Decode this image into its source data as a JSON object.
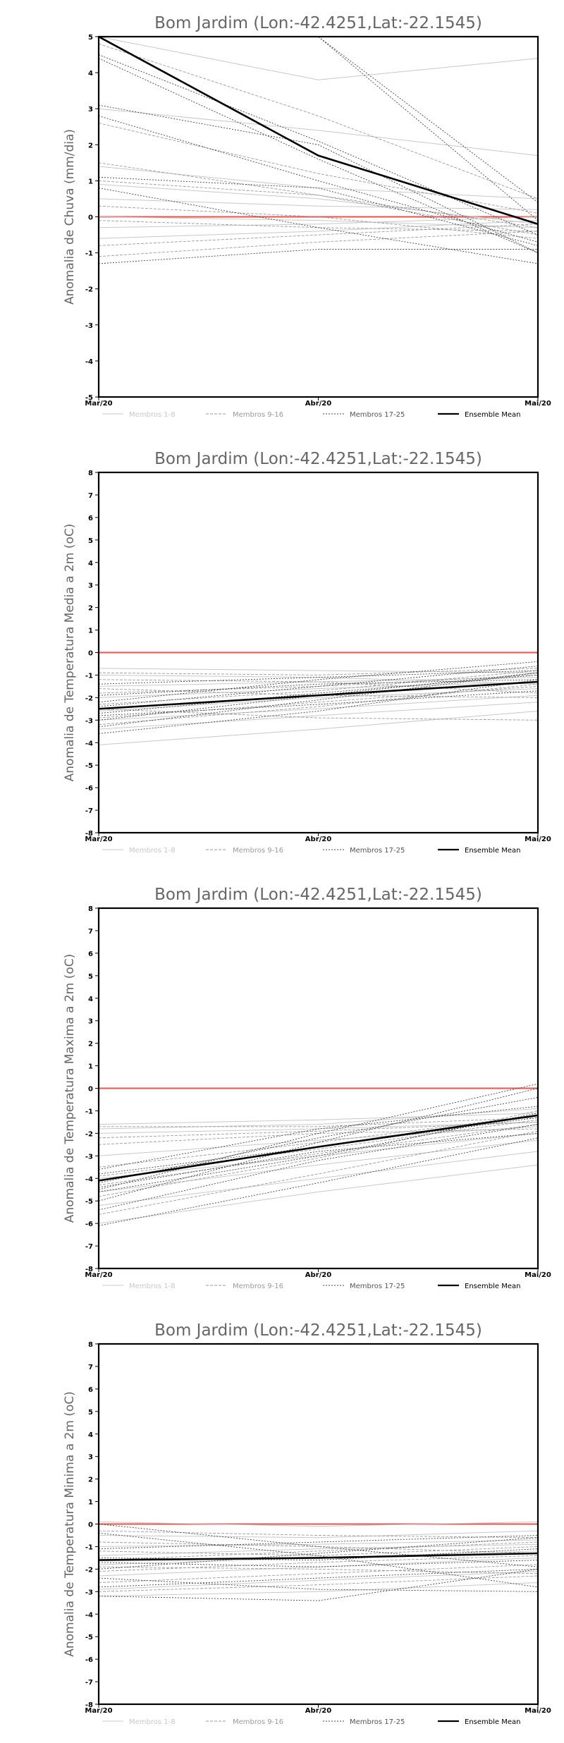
{
  "chart_data": [
    {
      "type": "line",
      "title": "Bom Jardim (Lon:-42.4251,Lat:-22.1545)",
      "ylabel": "Anomalia de Chuva (mm/dia)",
      "categories": [
        "Mar/20",
        "Abr/20",
        "Mai/20"
      ],
      "ylim": [
        -5,
        5
      ],
      "yticks": [
        -5,
        -4,
        -3,
        -2,
        -1,
        0,
        1,
        2,
        3,
        4,
        5
      ],
      "zero_line_color": "#e06666",
      "legend": [
        "Membros 1-8",
        "Membros 9-16",
        "Membros 17-25",
        "Ensemble Mean"
      ],
      "legend_placement": "bottom",
      "series": [
        {
          "group": 0,
          "values": [
            5.0,
            3.8,
            4.4
          ]
        },
        {
          "group": 0,
          "values": [
            3.0,
            2.4,
            1.7
          ]
        },
        {
          "group": 0,
          "values": [
            1.4,
            0.8,
            0.5
          ]
        },
        {
          "group": 0,
          "values": [
            0.5,
            0.3,
            0.2
          ]
        },
        {
          "group": 0,
          "values": [
            -0.3,
            -0.2,
            0.0
          ]
        },
        {
          "group": 0,
          "values": [
            -0.6,
            -0.4,
            -0.1
          ]
        },
        {
          "group": 0,
          "values": [
            0.0,
            -0.1,
            -0.3
          ]
        },
        {
          "group": 0,
          "values": [
            0.9,
            0.5,
            -0.2
          ]
        },
        {
          "group": 1,
          "values": [
            4.8,
            2.8,
            0.5
          ]
        },
        {
          "group": 1,
          "values": [
            2.6,
            1.2,
            0.1
          ]
        },
        {
          "group": 1,
          "values": [
            1.0,
            0.6,
            -0.5
          ]
        },
        {
          "group": 1,
          "values": [
            0.3,
            0.0,
            -0.6
          ]
        },
        {
          "group": 1,
          "values": [
            -1.1,
            -0.7,
            -0.4
          ]
        },
        {
          "group": 1,
          "values": [
            -0.8,
            -0.5,
            -0.2
          ]
        },
        {
          "group": 1,
          "values": [
            -0.1,
            -0.3,
            -0.4
          ]
        },
        {
          "group": 1,
          "values": [
            1.5,
            0.6,
            -0.3
          ]
        },
        {
          "group": 2,
          "values": [
            5.0,
            5.0,
            0.4
          ]
        },
        {
          "group": 2,
          "values": [
            5.0,
            5.0,
            -0.1
          ]
        },
        {
          "group": 2,
          "values": [
            4.5,
            2.1,
            -0.5
          ]
        },
        {
          "group": 2,
          "values": [
            2.8,
            1.0,
            -0.7
          ]
        },
        {
          "group": 2,
          "values": [
            3.1,
            2.0,
            -1.0
          ]
        },
        {
          "group": 2,
          "values": [
            1.1,
            0.8,
            -0.8
          ]
        },
        {
          "group": 2,
          "values": [
            0.8,
            -0.3,
            -1.3
          ]
        },
        {
          "group": 2,
          "values": [
            -1.3,
            -0.9,
            -0.9
          ]
        },
        {
          "group": 2,
          "values": [
            4.4,
            1.6,
            -1.0
          ]
        },
        {
          "group": 3,
          "values": [
            5.0,
            1.7,
            -0.2
          ]
        }
      ]
    },
    {
      "type": "line",
      "title": "Bom Jardim (Lon:-42.4251,Lat:-22.1545)",
      "ylabel": "Anomalia de Temperatura Media a 2m (oC)",
      "categories": [
        "Mar/20",
        "Abr/20",
        "Mai/20"
      ],
      "ylim": [
        -8,
        8
      ],
      "yticks": [
        -8,
        -7,
        -6,
        -5,
        -4,
        -3,
        -2,
        -1,
        0,
        1,
        2,
        3,
        4,
        5,
        6,
        7,
        8
      ],
      "zero_line_color": "#e06666",
      "legend": [
        "Membros 1-8",
        "Membros 9-16",
        "Membros 17-25",
        "Ensemble Mean"
      ],
      "legend_placement": "bottom",
      "series": [
        {
          "group": 0,
          "values": [
            -0.7,
            -0.8,
            -0.9
          ]
        },
        {
          "group": 0,
          "values": [
            -1.0,
            -1.1,
            -1.4
          ]
        },
        {
          "group": 0,
          "values": [
            -1.5,
            -1.3,
            -1.1
          ]
        },
        {
          "group": 0,
          "values": [
            -2.0,
            -1.6,
            -1.3
          ]
        },
        {
          "group": 0,
          "values": [
            -2.6,
            -2.0,
            -1.6
          ]
        },
        {
          "group": 0,
          "values": [
            -3.0,
            -2.5,
            -1.9
          ]
        },
        {
          "group": 0,
          "values": [
            -3.4,
            -2.8,
            -2.2
          ]
        },
        {
          "group": 0,
          "values": [
            -4.1,
            -3.4,
            -2.6
          ]
        },
        {
          "group": 1,
          "values": [
            -1.2,
            -1.3,
            -1.8
          ]
        },
        {
          "group": 1,
          "values": [
            -1.8,
            -1.5,
            -1.0
          ]
        },
        {
          "group": 1,
          "values": [
            -2.3,
            -1.7,
            -0.8
          ]
        },
        {
          "group": 1,
          "values": [
            -2.9,
            -2.2,
            -1.5
          ]
        },
        {
          "group": 1,
          "values": [
            -3.2,
            -2.4,
            -1.4
          ]
        },
        {
          "group": 1,
          "values": [
            -2.5,
            -2.9,
            -3.0
          ]
        },
        {
          "group": 1,
          "values": [
            -0.9,
            -1.0,
            -0.7
          ]
        },
        {
          "group": 1,
          "values": [
            -1.6,
            -1.9,
            -2.0
          ]
        },
        {
          "group": 2,
          "values": [
            -2.4,
            -1.5,
            -0.6
          ]
        },
        {
          "group": 2,
          "values": [
            -3.0,
            -1.9,
            -0.9
          ]
        },
        {
          "group": 2,
          "values": [
            -3.6,
            -2.6,
            -1.2
          ]
        },
        {
          "group": 2,
          "values": [
            -2.2,
            -1.2,
            -0.4
          ]
        },
        {
          "group": 2,
          "values": [
            -1.9,
            -1.4,
            -1.2
          ]
        },
        {
          "group": 2,
          "values": [
            -3.3,
            -2.1,
            -0.9
          ]
        },
        {
          "group": 2,
          "values": [
            -2.7,
            -1.8,
            -1.0
          ]
        },
        {
          "group": 2,
          "values": [
            -1.4,
            -1.1,
            -0.8
          ]
        },
        {
          "group": 2,
          "values": [
            -2.8,
            -2.3,
            -1.7
          ]
        },
        {
          "group": 3,
          "values": [
            -2.5,
            -1.9,
            -1.3
          ]
        }
      ]
    },
    {
      "type": "line",
      "title": "Bom Jardim (Lon:-42.4251,Lat:-22.1545)",
      "ylabel": "Anomalia de Temperatura Maxima a 2m (oC)",
      "categories": [
        "Mar/20",
        "Abr/20",
        "Mai/20"
      ],
      "ylim": [
        -8,
        8
      ],
      "yticks": [
        -8,
        -7,
        -6,
        -5,
        -4,
        -3,
        -2,
        -1,
        0,
        1,
        2,
        3,
        4,
        5,
        6,
        7,
        8
      ],
      "zero_line_color": "#e06666",
      "legend": [
        "Membros 1-8",
        "Membros 9-16",
        "Membros 17-25",
        "Ensemble Mean"
      ],
      "legend_placement": "bottom",
      "series": [
        {
          "group": 0,
          "values": [
            -1.6,
            -1.4,
            -1.1
          ]
        },
        {
          "group": 0,
          "values": [
            -2.0,
            -1.8,
            -1.5
          ]
        },
        {
          "group": 0,
          "values": [
            -3.0,
            -2.3,
            -1.7
          ]
        },
        {
          "group": 0,
          "values": [
            -4.0,
            -3.0,
            -2.0
          ]
        },
        {
          "group": 0,
          "values": [
            -4.6,
            -3.4,
            -2.3
          ]
        },
        {
          "group": 0,
          "values": [
            -5.2,
            -4.0,
            -2.8
          ]
        },
        {
          "group": 0,
          "values": [
            -6.0,
            -4.6,
            -3.4
          ]
        },
        {
          "group": 0,
          "values": [
            -1.8,
            -1.6,
            -0.9
          ]
        },
        {
          "group": 1,
          "values": [
            -1.7,
            -1.7,
            -1.3
          ]
        },
        {
          "group": 1,
          "values": [
            -2.2,
            -1.9,
            -1.5
          ]
        },
        {
          "group": 1,
          "values": [
            -3.5,
            -2.4,
            -1.2
          ]
        },
        {
          "group": 1,
          "values": [
            -4.3,
            -2.9,
            -1.6
          ]
        },
        {
          "group": 1,
          "values": [
            -4.8,
            -3.1,
            -1.0
          ]
        },
        {
          "group": 1,
          "values": [
            -5.6,
            -3.8,
            -1.9
          ]
        },
        {
          "group": 1,
          "values": [
            -3.9,
            -2.7,
            -1.4
          ]
        },
        {
          "group": 1,
          "values": [
            -2.5,
            -2.0,
            -1.8
          ]
        },
        {
          "group": 2,
          "values": [
            -4.5,
            -2.0,
            0.2
          ]
        },
        {
          "group": 2,
          "values": [
            -5.0,
            -2.4,
            0.0
          ]
        },
        {
          "group": 2,
          "values": [
            -4.2,
            -2.2,
            -0.4
          ]
        },
        {
          "group": 2,
          "values": [
            -3.6,
            -1.8,
            -0.8
          ]
        },
        {
          "group": 2,
          "values": [
            -4.6,
            -3.0,
            -1.1
          ]
        },
        {
          "group": 2,
          "values": [
            -5.4,
            -3.2,
            -1.6
          ]
        },
        {
          "group": 2,
          "values": [
            -3.8,
            -2.6,
            -1.3
          ]
        },
        {
          "group": 2,
          "values": [
            -4.4,
            -2.8,
            -2.0
          ]
        },
        {
          "group": 2,
          "values": [
            -6.1,
            -4.2,
            -2.2
          ]
        },
        {
          "group": 3,
          "values": [
            -4.1,
            -2.6,
            -1.2
          ]
        }
      ]
    },
    {
      "type": "line",
      "title": "Bom Jardim (Lon:-42.4251,Lat:-22.1545)",
      "ylabel": "Anomalia de Temperatura Minima a 2m (oC)",
      "categories": [
        "Mar/20",
        "Abr/20",
        "Mai/20"
      ],
      "ylim": [
        -8,
        8
      ],
      "yticks": [
        -8,
        -7,
        -6,
        -5,
        -4,
        -3,
        -2,
        -1,
        0,
        1,
        2,
        3,
        4,
        5,
        6,
        7,
        8
      ],
      "zero_line_color": "#e06666",
      "legend": [
        "Membros 1-8",
        "Membros 9-16",
        "Membros 17-25",
        "Ensemble Mean"
      ],
      "legend_placement": "bottom",
      "series": [
        {
          "group": 0,
          "values": [
            0.1,
            -0.1,
            0.1
          ]
        },
        {
          "group": 0,
          "values": [
            -0.5,
            -0.6,
            -0.3
          ]
        },
        {
          "group": 0,
          "values": [
            -1.0,
            -0.9,
            -0.7
          ]
        },
        {
          "group": 0,
          "values": [
            -1.4,
            -1.1,
            -0.9
          ]
        },
        {
          "group": 0,
          "values": [
            -1.8,
            -1.5,
            -1.2
          ]
        },
        {
          "group": 0,
          "values": [
            -2.3,
            -1.9,
            -1.5
          ]
        },
        {
          "group": 0,
          "values": [
            -2.9,
            -2.5,
            -2.1
          ]
        },
        {
          "group": 0,
          "values": [
            -3.2,
            -3.0,
            -2.6
          ]
        },
        {
          "group": 1,
          "values": [
            -0.3,
            -0.5,
            -0.6
          ]
        },
        {
          "group": 1,
          "values": [
            -0.8,
            -1.0,
            -1.3
          ]
        },
        {
          "group": 1,
          "values": [
            -1.2,
            -1.4,
            -1.0
          ]
        },
        {
          "group": 1,
          "values": [
            -1.6,
            -1.2,
            -0.8
          ]
        },
        {
          "group": 1,
          "values": [
            -2.1,
            -1.7,
            -1.4
          ]
        },
        {
          "group": 1,
          "values": [
            -2.6,
            -2.2,
            -1.8
          ]
        },
        {
          "group": 1,
          "values": [
            -3.0,
            -2.7,
            -2.3
          ]
        },
        {
          "group": 1,
          "values": [
            -1.9,
            -2.0,
            -2.2
          ]
        },
        {
          "group": 2,
          "values": [
            0.0,
            -1.0,
            -1.9
          ]
        },
        {
          "group": 2,
          "values": [
            -0.4,
            -1.4,
            -2.8
          ]
        },
        {
          "group": 2,
          "values": [
            -1.1,
            -0.8,
            -0.5
          ]
        },
        {
          "group": 2,
          "values": [
            -1.5,
            -1.6,
            -1.1
          ]
        },
        {
          "group": 2,
          "values": [
            -2.0,
            -1.3,
            -0.6
          ]
        },
        {
          "group": 2,
          "values": [
            -2.4,
            -2.9,
            -3.0
          ]
        },
        {
          "group": 2,
          "values": [
            -3.2,
            -3.4,
            -2.0
          ]
        },
        {
          "group": 2,
          "values": [
            -1.7,
            -1.9,
            -1.6
          ]
        },
        {
          "group": 2,
          "values": [
            -2.8,
            -2.4,
            -2.0
          ]
        },
        {
          "group": 3,
          "values": [
            -1.6,
            -1.5,
            -1.3
          ]
        }
      ]
    }
  ]
}
